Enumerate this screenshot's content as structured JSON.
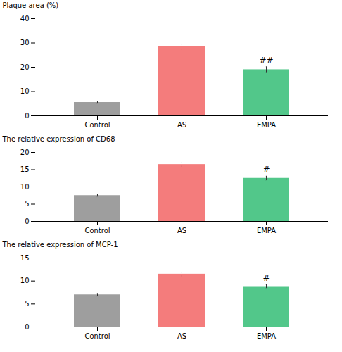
{
  "chart_data": [
    {
      "type": "bar",
      "categories": [
        "Control",
        "AS",
        "EMPA"
      ],
      "values": [
        5.5,
        28.5,
        19.0
      ],
      "errors": [
        0.5,
        1.0,
        1.2
      ],
      "colors": [
        "#9E9E9E",
        "#F47C7C",
        "#52C78A"
      ],
      "ylabel": "Plaque area (%)",
      "ylim": [
        0,
        40
      ],
      "yticks": [
        0,
        10,
        20,
        30,
        40
      ],
      "annotations": [
        {
          "text": "##",
          "category": "EMPA"
        }
      ],
      "grid": false
    },
    {
      "type": "bar",
      "categories": [
        "Control",
        "AS",
        "EMPA"
      ],
      "values": [
        7.5,
        16.5,
        12.5
      ],
      "errors": [
        0.4,
        0.5,
        0.6
      ],
      "colors": [
        "#9E9E9E",
        "#F47C7C",
        "#52C78A"
      ],
      "ylabel": "The relative expression of CD68",
      "ylim": [
        0,
        20
      ],
      "yticks": [
        0,
        5,
        10,
        15,
        20
      ],
      "annotations": [
        {
          "text": "#",
          "category": "EMPA"
        }
      ],
      "grid": false
    },
    {
      "type": "bar",
      "categories": [
        "Control",
        "AS",
        "EMPA"
      ],
      "values": [
        7.0,
        11.5,
        8.8
      ],
      "errors": [
        0.3,
        0.4,
        0.4
      ],
      "colors": [
        "#9E9E9E",
        "#F47C7C",
        "#52C78A"
      ],
      "ylabel": "The relative expression of MCP-1",
      "ylim": [
        0,
        15
      ],
      "yticks": [
        0,
        5,
        10,
        15
      ],
      "annotations": [
        {
          "text": "#",
          "category": "EMPA"
        }
      ],
      "grid": false
    }
  ]
}
